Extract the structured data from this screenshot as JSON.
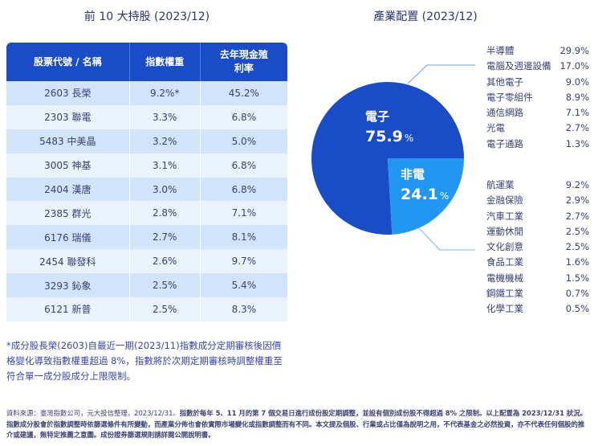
{
  "left": {
    "title": "前 10 大持股 (2023/12)",
    "headers": [
      "股票代號 / 名稱",
      "指數權重",
      "去年現金殖利率"
    ],
    "header_lines": {
      "c3a": "去年現金殖",
      "c3b": "利率"
    },
    "rows": [
      [
        "2603 長榮",
        "9.2%*",
        "45.2%"
      ],
      [
        "2303 聯電",
        "3.3%",
        "6.8%"
      ],
      [
        "5483 中美晶",
        "3.2%",
        "5.0%"
      ],
      [
        "3005 神基",
        "3.1%",
        "6.8%"
      ],
      [
        "2404 漢唐",
        "3.0%",
        "6.8%"
      ],
      [
        "2385 群光",
        "2.8%",
        "7.1%"
      ],
      [
        "6176 瑞儀",
        "2.7%",
        "8.1%"
      ],
      [
        "2454 聯發科",
        "2.6%",
        "9.7%"
      ],
      [
        "3293 鈊象",
        "2.5%",
        "5.4%"
      ],
      [
        "6121 新普",
        "2.5%",
        "8.3%"
      ]
    ],
    "note": "*成分股長榮(2603)自最近一期(2023/11)指數成分定期審核後因價格變化導致指數權重超過 8%，指數將於次期定期審核時調整權重至符合單一成分股成分上限限制。"
  },
  "source": {
    "part1": "資料來源：臺灣指數公司，元大投信整理，2023/12/31。",
    "part2": "指數於每年 5、11 月的第 7 個交易日進行成份股定期調整，並設有個別成份股不得超過 8% 之限制。以上配置為 2023/12/31 狀況。指數成分股會於指數調整時依篩選條件有所變動，而產業分佈也會依實際市場變化或指數調整而有不同。本文提及個股、行業或占比僅為說明之用，不代表基金之必然投資，亦不代表任何個股的推介或建議，無特定推薦之意圖。成份證券篩選規則請詳閱公開說明書。"
  },
  "chart_data": {
    "type": "pie",
    "title": "產業配置 (2023/12)",
    "colors": {
      "電子": "#1a4cc7",
      "非電": "#2196f3"
    },
    "slices": [
      {
        "label": "電子",
        "value": 75.9
      },
      {
        "label": "非電",
        "value": 24.1
      }
    ],
    "unit": "%",
    "breakdown": {
      "電子": [
        [
          "半導體",
          "29.9%"
        ],
        [
          "電腦及週邊設備",
          "17.0%"
        ],
        [
          "其他電子",
          "9.0%"
        ],
        [
          "電子零組件",
          "8.9%"
        ],
        [
          "通信網路",
          "7.1%"
        ],
        [
          "光電",
          "2.7%"
        ],
        [
          "電子通路",
          "1.3%"
        ]
      ],
      "非電": [
        [
          "航運業",
          "9.2%"
        ],
        [
          "金融保險",
          "2.9%"
        ],
        [
          "汽車工業",
          "2.7%"
        ],
        [
          "運動休閒",
          "2.5%"
        ],
        [
          "文化創意",
          "2.5%"
        ],
        [
          "食品工業",
          "1.6%"
        ],
        [
          "電機機械",
          "1.5%"
        ],
        [
          "鋼鐵工業",
          "0.7%"
        ],
        [
          "化學工業",
          "0.5%"
        ]
      ]
    }
  }
}
